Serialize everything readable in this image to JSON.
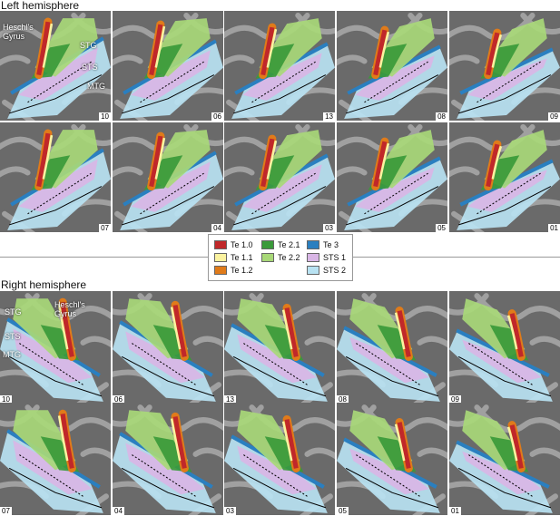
{
  "left": {
    "title": "Left hemisphere",
    "annotations": [
      "Heschl's Gyrus",
      "STG",
      "STS",
      "MTG"
    ],
    "panels": [
      "10",
      "06",
      "13",
      "08",
      "09",
      "07",
      "04",
      "03",
      "05",
      "01"
    ]
  },
  "legend": {
    "columns": [
      [
        {
          "label": "Te 1.0",
          "color": "#c0282a"
        },
        {
          "label": "Te 1.1",
          "color": "#fbf3a0"
        },
        {
          "label": "Te 1.2",
          "color": "#e07b1a"
        }
      ],
      [
        {
          "label": "Te 2.1",
          "color": "#3a9a3a"
        },
        {
          "label": "Te 2.2",
          "color": "#a8d878"
        }
      ],
      [
        {
          "label": "Te 3",
          "color": "#2a7fc0"
        },
        {
          "label": "STS 1",
          "color": "#d9b6e6"
        },
        {
          "label": "STS 2",
          "color": "#b8e2f2"
        }
      ]
    ]
  },
  "right": {
    "title": "Right hemisphere",
    "annotations": [
      "Heschl's Gyrus",
      "STG",
      "STS",
      "MTG"
    ],
    "panels": [
      "10",
      "06",
      "13",
      "08",
      "09",
      "07",
      "04",
      "03",
      "05",
      "01"
    ]
  }
}
